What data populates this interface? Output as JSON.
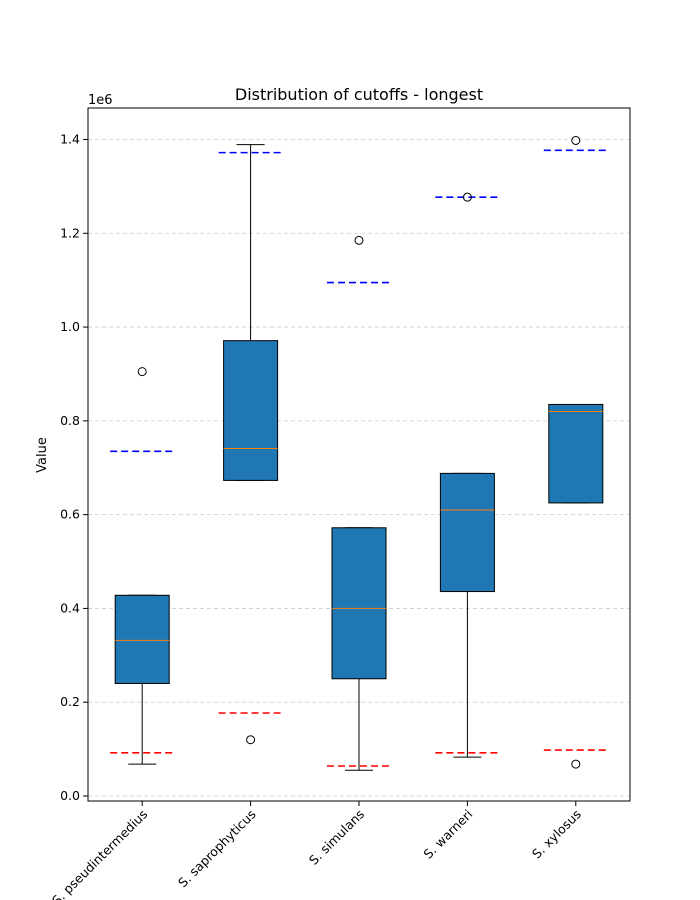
{
  "chart_data": {
    "type": "box",
    "title": "Distribution of cutoffs - longest",
    "xlabel": "",
    "ylabel": "Value",
    "y_multiplier_label": "1e6",
    "ylim": [
      -0.01,
      1.465
    ],
    "y_ticks": [
      0.0,
      0.2,
      0.4,
      0.6,
      0.8,
      1.0,
      1.2,
      1.4
    ],
    "y_tick_labels": [
      "0.0",
      "0.2",
      "0.4",
      "0.6",
      "0.8",
      "1.0",
      "1.2",
      "1.4"
    ],
    "grid": "horizontal dashed",
    "categories": [
      "S. pseudintermedius",
      "S. saprophyticus",
      "S. simulans",
      "S. warneri",
      "S. xylosus"
    ],
    "boxes": [
      {
        "category": "S. pseudintermedius",
        "whisker_low": 0.068,
        "q1": 0.24,
        "median": 0.332,
        "q3": 0.428,
        "whisker_high": 0.428,
        "outliers": [
          0.905
        ],
        "upper_cutoff": 0.735,
        "lower_cutoff": 0.092
      },
      {
        "category": "S. saprophyticus",
        "whisker_low": 0.673,
        "q1": 0.673,
        "median": 0.741,
        "q3": 0.971,
        "whisker_high": 1.389,
        "outliers": [
          0.12
        ],
        "upper_cutoff": 1.372,
        "lower_cutoff": 0.177
      },
      {
        "category": "S. simulans",
        "whisker_low": 0.055,
        "q1": 0.25,
        "median": 0.4,
        "q3": 0.572,
        "whisker_high": 0.572,
        "outliers": [
          1.185
        ],
        "upper_cutoff": 1.095,
        "lower_cutoff": 0.064
      },
      {
        "category": "S. warneri",
        "whisker_low": 0.083,
        "q1": 0.436,
        "median": 0.61,
        "q3": 0.688,
        "whisker_high": 0.688,
        "outliers": [
          1.277
        ],
        "upper_cutoff": 1.277,
        "lower_cutoff": 0.092
      },
      {
        "category": "S. xylosus",
        "whisker_low": 0.625,
        "q1": 0.625,
        "median": 0.82,
        "q3": 0.835,
        "whisker_high": 0.835,
        "outliers": [
          1.398,
          0.068
        ],
        "upper_cutoff": 1.377,
        "lower_cutoff": 0.098
      }
    ],
    "colors": {
      "box_fill": "#1f77b4",
      "median": "#ff7f0e",
      "upper_cutoff": "#0000ff",
      "lower_cutoff": "#ff0000",
      "grid": "#cccccc"
    }
  }
}
